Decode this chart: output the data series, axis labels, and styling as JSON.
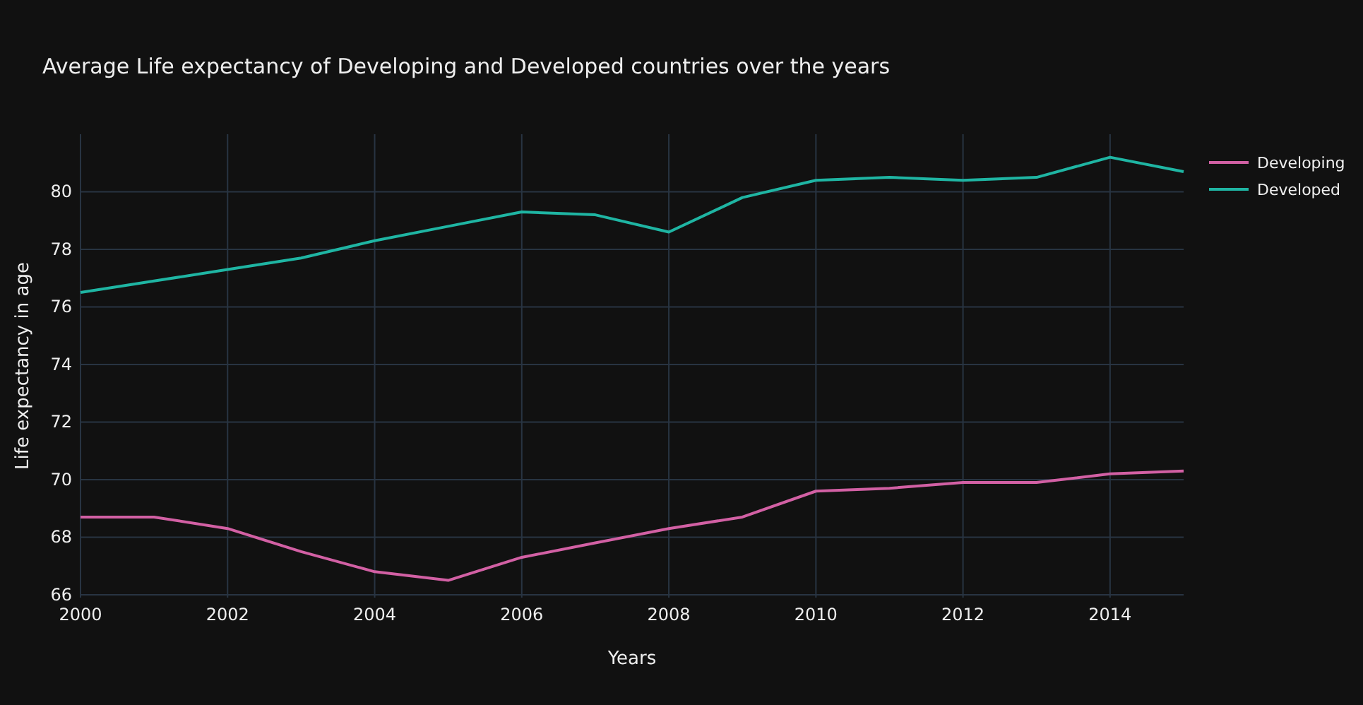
{
  "chart_data": {
    "type": "line",
    "title": "Average Life expectancy of Developing and Developed countries over the years",
    "xlabel": "Years",
    "ylabel": "Life expectancy in age",
    "x": [
      2000,
      2001,
      2002,
      2003,
      2004,
      2005,
      2006,
      2007,
      2008,
      2009,
      2010,
      2011,
      2012,
      2013,
      2014,
      2015
    ],
    "series": [
      {
        "name": "Developing",
        "color": "#d260a4",
        "values": [
          68.7,
          68.7,
          68.3,
          67.5,
          66.8,
          66.5,
          67.3,
          67.8,
          68.3,
          68.7,
          69.6,
          69.7,
          69.9,
          69.9,
          70.2,
          70.3
        ]
      },
      {
        "name": "Developed",
        "color": "#1fb5a3",
        "values": [
          76.5,
          76.9,
          77.3,
          77.7,
          78.3,
          78.8,
          79.3,
          79.2,
          78.6,
          79.8,
          80.4,
          80.5,
          80.4,
          80.5,
          81.2,
          80.7
        ]
      }
    ],
    "xlim": [
      2000,
      2015
    ],
    "xticks": [
      2000,
      2002,
      2004,
      2006,
      2008,
      2010,
      2012,
      2014
    ],
    "ylim": [
      65.9,
      82
    ],
    "yticks": [
      66,
      68,
      70,
      72,
      74,
      76,
      78,
      80
    ],
    "grid": true,
    "legend": "top right",
    "line_style": "solid",
    "marker": "none"
  }
}
